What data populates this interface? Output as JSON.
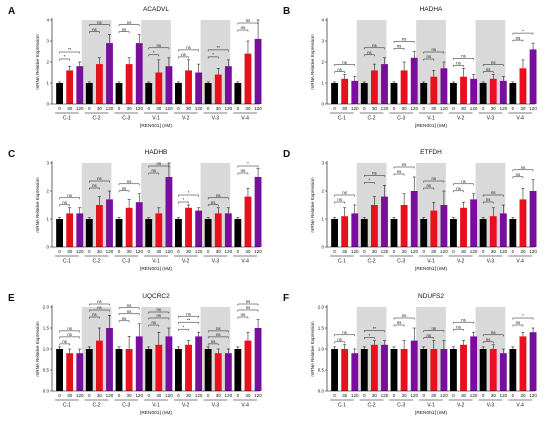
{
  "x_dose_labels": [
    "0",
    "30",
    "120"
  ],
  "groups": [
    "C-1",
    "C-2",
    "C-3",
    "V-1",
    "V-2",
    "V-3",
    "V-4"
  ],
  "shaded_groups": [
    1,
    3,
    5
  ],
  "colors": {
    "dose_0": "#000000",
    "dose_30": "#e8101d",
    "dose_120": "#7a0e9c",
    "shade": "#d9d9d9",
    "bracket": "#000000"
  },
  "chart_data": [
    {
      "type": "bar",
      "letter": "A",
      "title": "ACADVL",
      "ylabel": "mRNA Relative Expression",
      "xlabel": "[REN001] (nM)",
      "ylim": [
        0,
        4
      ],
      "yticks": [
        "0",
        "1",
        "2",
        "3",
        "4"
      ],
      "categories": [
        "C-1",
        "C-2",
        "C-3",
        "V-1",
        "V-2",
        "V-3",
        "V-4"
      ],
      "series": [
        {
          "dose": "0",
          "values": [
            1,
            1,
            1,
            1,
            1,
            1,
            1
          ]
        },
        {
          "dose": "30",
          "values": [
            1.6,
            1.9,
            1.9,
            1.5,
            1.6,
            1.4,
            2.4
          ]
        },
        {
          "dose": "120",
          "values": [
            1.8,
            2.9,
            2.9,
            1.8,
            1.5,
            1.8,
            3.1
          ]
        }
      ],
      "errors": [
        [
          0.05,
          0.05,
          0.05,
          0.05,
          0.05,
          0.05,
          0.05
        ],
        [
          0.2,
          0.3,
          0.3,
          0.6,
          0.5,
          0.3,
          0.6
        ],
        [
          0.2,
          0.4,
          0.4,
          0.4,
          0.4,
          0.3,
          0.9
        ]
      ],
      "significance": [
        {
          "near": [
            "*",
            "ns",
            "ns",
            "*",
            "ns",
            "*",
            "ns"
          ],
          "far": [
            "**",
            "ns",
            "ns",
            "ns",
            "ns",
            "**",
            "ns"
          ]
        }
      ]
    },
    {
      "type": "bar",
      "letter": "B",
      "title": "HADHA",
      "ylabel": "mRNA Relative Expression",
      "xlabel": "[REN001] (nM)",
      "ylim": [
        0,
        4
      ],
      "yticks": [
        "0",
        "1",
        "2",
        "3",
        "4"
      ],
      "categories": [
        "C-1",
        "C-2",
        "C-3",
        "V-1",
        "V-2",
        "V-3",
        "V-4"
      ],
      "series": [
        {
          "dose": "0",
          "values": [
            1,
            1,
            1,
            1,
            1,
            1,
            1
          ]
        },
        {
          "dose": "30",
          "values": [
            1.2,
            1.6,
            1.6,
            1.3,
            1.3,
            1.2,
            1.7
          ]
        },
        {
          "dose": "120",
          "values": [
            1.1,
            1.9,
            2.2,
            1.7,
            1.2,
            1.1,
            2.6
          ]
        }
      ],
      "errors": [
        [
          0.05,
          0.05,
          0.05,
          0.05,
          0.05,
          0.05,
          0.05
        ],
        [
          0.2,
          0.3,
          0.4,
          0.3,
          0.4,
          0.2,
          0.4
        ],
        [
          0.2,
          0.3,
          0.3,
          0.3,
          0.2,
          0.2,
          0.3
        ]
      ],
      "significance": [
        {
          "near": [
            "ns",
            "ns",
            "ns",
            "ns",
            "ns",
            "ns",
            "ns"
          ],
          "far": [
            "ns",
            "ns",
            "ns",
            "ns",
            "ns",
            "ns",
            "*"
          ]
        }
      ]
    },
    {
      "type": "bar",
      "letter": "C",
      "title": "HADHB",
      "ylabel": "mRNA Relative Expression",
      "xlabel": "[REN001] (nM)",
      "ylim": [
        0,
        3
      ],
      "yticks": [
        "0",
        "1",
        "2",
        "3"
      ],
      "categories": [
        "C-1",
        "C-2",
        "C-3",
        "V-1",
        "V-2",
        "V-3",
        "V-4"
      ],
      "series": [
        {
          "dose": "0",
          "values": [
            1,
            1,
            1,
            1,
            1,
            1,
            1
          ]
        },
        {
          "dose": "30",
          "values": [
            1.2,
            1.5,
            1.4,
            1.2,
            1.4,
            1.2,
            1.8
          ]
        },
        {
          "dose": "120",
          "values": [
            1.2,
            1.7,
            1.6,
            2.5,
            1.3,
            1.2,
            2.5
          ]
        }
      ],
      "errors": [
        [
          0.05,
          0.05,
          0.05,
          0.05,
          0.05,
          0.05,
          0.05
        ],
        [
          0.2,
          0.3,
          0.3,
          0.2,
          0.1,
          0.2,
          0.3
        ],
        [
          0.2,
          0.3,
          0.3,
          0.5,
          0.1,
          0.2,
          0.3
        ]
      ],
      "significance": [
        {
          "near": [
            "ns",
            "ns",
            "ns",
            "ns",
            "*",
            "ns",
            "ns"
          ],
          "far": [
            "ns",
            "ns",
            "ns",
            "ns",
            "*",
            "ns",
            "*"
          ]
        }
      ]
    },
    {
      "type": "bar",
      "letter": "D",
      "title": "ETFDH",
      "ylabel": "mRNA Relative Expression",
      "xlabel": "[REN001] (nM)",
      "ylim": [
        0,
        3
      ],
      "yticks": [
        "0",
        "1",
        "2",
        "3"
      ],
      "categories": [
        "C-1",
        "C-2",
        "C-3",
        "V-1",
        "V-2",
        "V-3",
        "V-4"
      ],
      "series": [
        {
          "dose": "0",
          "values": [
            1,
            1,
            1,
            1,
            1,
            1,
            1
          ]
        },
        {
          "dose": "30",
          "values": [
            1.1,
            1.5,
            1.5,
            1.3,
            1.4,
            1.1,
            1.7
          ]
        },
        {
          "dose": "120",
          "values": [
            1.2,
            1.8,
            2.0,
            1.5,
            1.7,
            1.2,
            2.0
          ]
        }
      ],
      "errors": [
        [
          0.05,
          0.05,
          0.05,
          0.05,
          0.05,
          0.05,
          0.05
        ],
        [
          0.3,
          0.3,
          0.4,
          0.3,
          0.2,
          0.3,
          0.4
        ],
        [
          0.3,
          0.4,
          0.5,
          0.5,
          0.2,
          0.3,
          0.4
        ]
      ],
      "significance": [
        {
          "near": [
            "ns",
            "*",
            "ns",
            "ns",
            "ns",
            "ns",
            "ns"
          ],
          "far": [
            "ns",
            "ns",
            "ns",
            "ns",
            "ns",
            "ns",
            "ns"
          ]
        }
      ]
    },
    {
      "type": "bar",
      "letter": "E",
      "title": "UQCRC2",
      "ylabel": "mRNA Relative Expression",
      "xlabel": "[REN001] (nM)",
      "ylim": [
        0,
        2
      ],
      "yticks": [
        "0.0",
        "0.5",
        "1.0",
        "1.5",
        "2.0"
      ],
      "categories": [
        "C-1",
        "C-2",
        "C-3",
        "V-1",
        "V-2",
        "V-3",
        "V-4"
      ],
      "series": [
        {
          "dose": "0",
          "values": [
            1,
            1,
            1,
            1,
            1,
            1,
            1
          ]
        },
        {
          "dose": "30",
          "values": [
            0.9,
            1.2,
            1.0,
            1.1,
            1.1,
            0.9,
            1.2
          ]
        },
        {
          "dose": "120",
          "values": [
            0.9,
            1.5,
            1.3,
            1.3,
            1.3,
            0.9,
            1.5
          ]
        }
      ],
      "errors": [
        [
          0.05,
          0.05,
          0.05,
          0.05,
          0.05,
          0.05,
          0.05
        ],
        [
          0.1,
          0.3,
          0.3,
          0.3,
          0.1,
          0.1,
          0.2
        ],
        [
          0.1,
          0.3,
          0.3,
          0.2,
          0.1,
          0.1,
          0.2
        ]
      ],
      "significance": [
        {
          "near": [
            "ns",
            "ns",
            "ns",
            "ns",
            "*",
            "ns",
            "ns"
          ],
          "far": [
            "ns",
            "ns",
            "ns",
            "ns",
            "**",
            "ns",
            "ns"
          ],
          "top": [
            "ns",
            "ns",
            "ns",
            "ns",
            "ns",
            "ns",
            "ns"
          ]
        }
      ]
    },
    {
      "type": "bar",
      "letter": "F",
      "title": "NDUFS2",
      "ylabel": "mRNA Relative Expression",
      "xlabel": "[REN001] (nM)",
      "ylim": [
        0,
        2
      ],
      "yticks": [
        "0.0",
        "0.5",
        "1.0",
        "1.5",
        "2.0"
      ],
      "categories": [
        "C-1",
        "C-2",
        "C-3",
        "V-1",
        "V-2",
        "V-3",
        "V-4"
      ],
      "series": [
        {
          "dose": "0",
          "values": [
            1,
            1,
            1,
            1,
            1,
            1,
            1
          ]
        },
        {
          "dose": "30",
          "values": [
            1.0,
            1.1,
            1.0,
            1.0,
            1.1,
            1.0,
            1.3
          ]
        },
        {
          "dose": "120",
          "values": [
            0.9,
            1.1,
            1.2,
            1.0,
            1.3,
            0.9,
            1.4
          ]
        }
      ],
      "errors": [
        [
          0.05,
          0.05,
          0.05,
          0.05,
          0.05,
          0.05,
          0.05
        ],
        [
          0.1,
          0.1,
          0.2,
          0.2,
          0.1,
          0.1,
          0.1
        ],
        [
          0.1,
          0.1,
          0.3,
          0.2,
          0.1,
          0.1,
          0.1
        ]
      ],
      "significance": [
        {
          "near": [
            "ns",
            "*",
            "ns",
            "ns",
            "ns",
            "ns",
            "ns"
          ],
          "far": [
            "ns",
            "**",
            "ns",
            "ns",
            "ns",
            "ns",
            "*"
          ]
        }
      ]
    }
  ]
}
